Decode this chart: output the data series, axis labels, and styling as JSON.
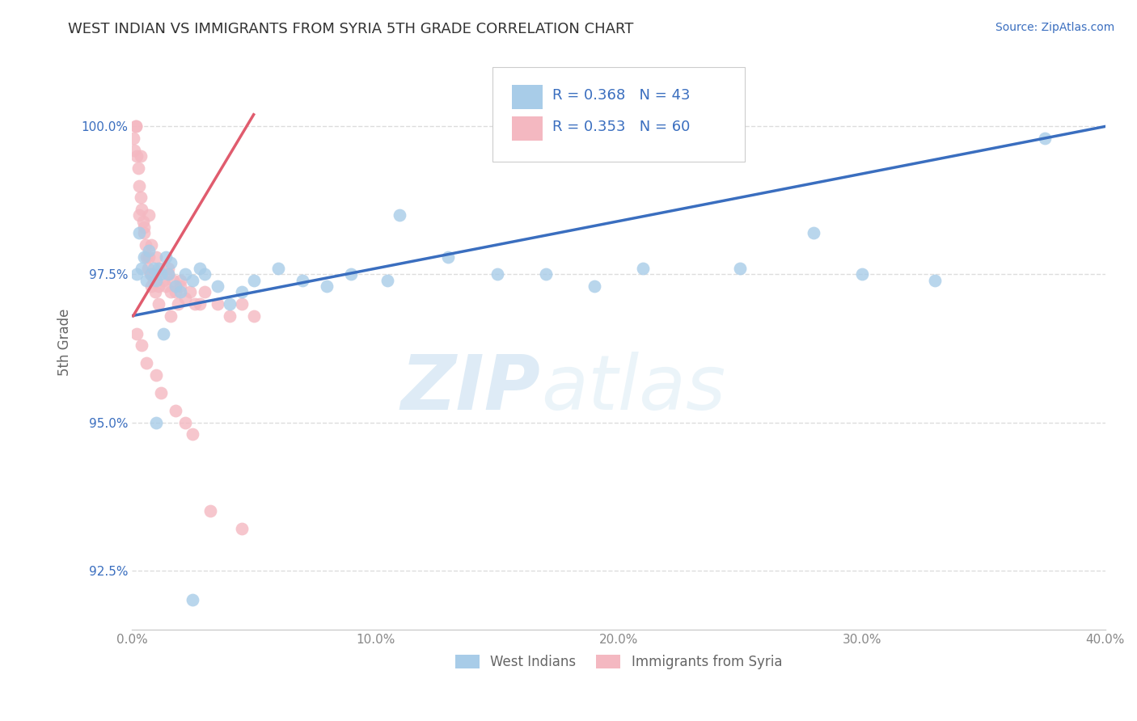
{
  "title": "WEST INDIAN VS IMMIGRANTS FROM SYRIA 5TH GRADE CORRELATION CHART",
  "source_text": "Source: ZipAtlas.com",
  "ylabel": "5th Grade",
  "xlim": [
    0.0,
    40.0
  ],
  "ylim": [
    91.5,
    101.2
  ],
  "yticks": [
    92.5,
    95.0,
    97.5,
    100.0
  ],
  "ytick_labels": [
    "92.5%",
    "95.0%",
    "97.5%",
    "100.0%"
  ],
  "xticks": [
    0.0,
    10.0,
    20.0,
    30.0,
    40.0
  ],
  "xtick_labels": [
    "0.0%",
    "10.0%",
    "20.0%",
    "30.0%",
    "40.0%"
  ],
  "legend_bottom_labels": [
    "West Indians",
    "Immigrants from Syria"
  ],
  "legend_R_blue": "R = 0.368",
  "legend_N_blue": "N = 43",
  "legend_R_pink": "R = 0.353",
  "legend_N_pink": "N = 60",
  "blue_color": "#A8CCE8",
  "pink_color": "#F4B8C1",
  "blue_line_color": "#3A6EBF",
  "pink_line_color": "#E05C6E",
  "blue_scatter_x": [
    0.2,
    0.3,
    0.4,
    0.5,
    0.6,
    0.7,
    0.8,
    0.9,
    1.0,
    1.1,
    1.2,
    1.4,
    1.5,
    1.6,
    1.8,
    2.0,
    2.2,
    2.5,
    2.8,
    3.0,
    3.5,
    4.0,
    4.5,
    5.0,
    6.0,
    7.0,
    8.0,
    9.0,
    10.5,
    11.0,
    13.0,
    15.0,
    17.0,
    19.0,
    21.0,
    25.0,
    28.0,
    30.0,
    33.0,
    37.5,
    1.0,
    1.3,
    2.5
  ],
  "blue_scatter_y": [
    97.5,
    98.2,
    97.6,
    97.8,
    97.4,
    97.9,
    97.5,
    97.6,
    97.4,
    97.6,
    97.5,
    97.8,
    97.5,
    97.7,
    97.3,
    97.2,
    97.5,
    97.4,
    97.6,
    97.5,
    97.3,
    97.0,
    97.2,
    97.4,
    97.6,
    97.4,
    97.3,
    97.5,
    97.4,
    98.5,
    97.8,
    97.5,
    97.5,
    97.3,
    97.6,
    97.6,
    98.2,
    97.5,
    97.4,
    99.8,
    95.0,
    96.5,
    92.0
  ],
  "pink_scatter_x": [
    0.05,
    0.1,
    0.15,
    0.2,
    0.25,
    0.3,
    0.35,
    0.4,
    0.45,
    0.5,
    0.55,
    0.6,
    0.65,
    0.7,
    0.75,
    0.8,
    0.85,
    0.9,
    0.95,
    1.0,
    1.1,
    1.2,
    1.3,
    1.4,
    1.5,
    1.6,
    1.7,
    1.8,
    1.9,
    2.0,
    2.2,
    2.4,
    2.6,
    2.8,
    3.0,
    3.5,
    4.0,
    4.5,
    5.0,
    0.3,
    0.5,
    0.8,
    1.0,
    1.5,
    2.0,
    0.2,
    0.4,
    0.6,
    1.0,
    1.2,
    1.8,
    2.5,
    0.15,
    0.35,
    0.7,
    1.1,
    1.6,
    2.2,
    3.2,
    4.5
  ],
  "pink_scatter_y": [
    99.8,
    99.6,
    100.0,
    99.5,
    99.3,
    99.0,
    98.8,
    98.6,
    98.4,
    98.2,
    98.0,
    97.8,
    97.6,
    97.8,
    97.5,
    97.3,
    97.5,
    97.4,
    97.2,
    97.5,
    97.3,
    97.6,
    97.4,
    97.3,
    97.5,
    97.2,
    97.4,
    97.2,
    97.0,
    97.3,
    97.1,
    97.2,
    97.0,
    97.0,
    97.2,
    97.0,
    96.8,
    97.0,
    96.8,
    98.5,
    98.3,
    98.0,
    97.8,
    97.6,
    97.4,
    96.5,
    96.3,
    96.0,
    95.8,
    95.5,
    95.2,
    94.8,
    100.0,
    99.5,
    98.5,
    97.0,
    96.8,
    95.0,
    93.5,
    93.2
  ],
  "blue_line_x0": 0.0,
  "blue_line_x1": 40.0,
  "blue_line_y0": 96.8,
  "blue_line_y1": 100.0,
  "pink_line_x0": 0.05,
  "pink_line_x1": 5.0,
  "pink_line_y0": 96.8,
  "pink_line_y1": 100.2,
  "watermark_zip": "ZIP",
  "watermark_atlas": "atlas",
  "background_color": "#ffffff",
  "grid_color": "#dddddd"
}
